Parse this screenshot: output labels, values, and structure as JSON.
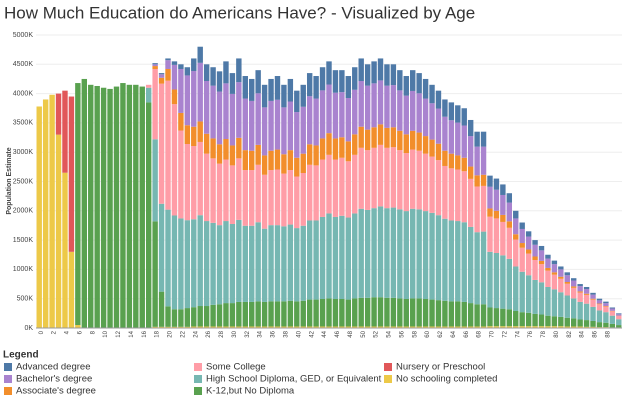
{
  "chart_data": {
    "type": "stacked_bar",
    "title": "How Much Education do Americans Have? - Visualized by Age",
    "y_label": "Population Estimate",
    "legend_title": "Legend",
    "grid": true,
    "ylim": [
      0,
      5000000
    ],
    "yticks": [
      {
        "value": 0,
        "label": "0K"
      },
      {
        "value": 500000,
        "label": "500K"
      },
      {
        "value": 1000000,
        "label": "1000K"
      },
      {
        "value": 1500000,
        "label": "1500K"
      },
      {
        "value": 2000000,
        "label": "2000K"
      },
      {
        "value": 2500000,
        "label": "2500K"
      },
      {
        "value": 3000000,
        "label": "3000K"
      },
      {
        "value": 3500000,
        "label": "3500K"
      },
      {
        "value": 4000000,
        "label": "4000K"
      },
      {
        "value": 4500000,
        "label": "4500K"
      },
      {
        "value": 5000000,
        "label": "5000K"
      }
    ],
    "categories": [
      "0",
      null,
      "2",
      null,
      "4",
      null,
      "6",
      null,
      "8",
      null,
      "10",
      null,
      "12",
      null,
      "14",
      null,
      "16",
      null,
      "18",
      null,
      "20",
      null,
      "22",
      null,
      "24",
      null,
      "26",
      null,
      "28",
      null,
      "30",
      null,
      "32",
      null,
      "34",
      null,
      "36",
      null,
      "38",
      null,
      "40",
      null,
      "42",
      null,
      "44",
      null,
      "46",
      null,
      "48",
      null,
      "50",
      null,
      "52",
      null,
      "54",
      null,
      "56",
      null,
      "58",
      null,
      "60",
      null,
      "62",
      null,
      "64",
      null,
      "66",
      null,
      "68",
      null,
      "70",
      null,
      "72",
      null,
      "74",
      null,
      "76",
      null,
      "78",
      null,
      "80",
      null,
      "82",
      null,
      "84",
      null,
      "86",
      null,
      "88",
      null,
      null
    ],
    "series": [
      {
        "name": "Advanced degree",
        "color": "#4e79a7",
        "values": [
          0,
          0,
          0,
          0,
          0,
          0,
          0,
          0,
          0,
          0,
          0,
          0,
          0,
          0,
          0,
          0,
          0,
          0,
          20000,
          20000,
          30000,
          60000,
          80000,
          140000,
          215000,
          275000,
          285000,
          315000,
          345000,
          375000,
          355000,
          405000,
          385000,
          375000,
          395000,
          385000,
          375000,
          405000,
          385000,
          385000,
          365000,
          375000,
          395000,
          385000,
          395000,
          395000,
          385000,
          375000,
          375000,
          385000,
          385000,
          365000,
          375000,
          375000,
          365000,
          355000,
          345000,
          335000,
          355000,
          345000,
          335000,
          315000,
          305000,
          295000,
          305000,
          295000,
          295000,
          275000,
          255000,
          255000,
          190000,
          190000,
          180000,
          160000,
          130000,
          110000,
          90000,
          80000,
          75000,
          65000,
          60000,
          50000,
          50000,
          40000,
          35000,
          35000,
          30000,
          28000,
          25000,
          17000,
          15000
        ]
      },
      {
        "name": "Bachelor's degree",
        "color": "#a983cf",
        "values": [
          0,
          0,
          0,
          0,
          0,
          0,
          0,
          0,
          0,
          0,
          0,
          0,
          0,
          0,
          0,
          0,
          0,
          0,
          30000,
          60000,
          150000,
          420000,
          750000,
          850000,
          950000,
          1000000,
          900000,
          900000,
          900000,
          950000,
          880000,
          950000,
          880000,
          850000,
          880000,
          820000,
          850000,
          850000,
          800000,
          830000,
          780000,
          800000,
          820000,
          800000,
          820000,
          830000,
          780000,
          770000,
          740000,
          760000,
          780000,
          750000,
          750000,
          750000,
          720000,
          720000,
          690000,
          660000,
          680000,
          670000,
          640000,
          620000,
          600000,
          580000,
          570000,
          560000,
          550000,
          520000,
          490000,
          480000,
          370000,
          360000,
          340000,
          320000,
          270000,
          240000,
          220000,
          200000,
          180000,
          160000,
          140000,
          125000,
          115000,
          100000,
          90000,
          80000,
          70000,
          55000,
          50000,
          40000,
          25000
        ]
      },
      {
        "name": "Associate's degree",
        "color": "#f28e2b",
        "values": [
          0,
          0,
          0,
          0,
          0,
          0,
          0,
          0,
          0,
          0,
          0,
          0,
          0,
          0,
          0,
          0,
          0,
          0,
          50000,
          100000,
          200000,
          250000,
          300000,
          320000,
          330000,
          350000,
          340000,
          340000,
          330000,
          350000,
          340000,
          350000,
          340000,
          330000,
          340000,
          330000,
          330000,
          340000,
          330000,
          340000,
          320000,
          330000,
          350000,
          340000,
          360000,
          370000,
          360000,
          350000,
          340000,
          350000,
          360000,
          350000,
          350000,
          350000,
          340000,
          340000,
          330000,
          320000,
          320000,
          310000,
          300000,
          290000,
          280000,
          260000,
          250000,
          240000,
          230000,
          210000,
          190000,
          190000,
          140000,
          130000,
          120000,
          110000,
          90000,
          80000,
          70000,
          60000,
          55000,
          45000,
          40000,
          35000,
          30000,
          25000,
          20000,
          20000,
          15000,
          12000,
          10000,
          8000,
          5000
        ]
      },
      {
        "name": "Some College",
        "color": "#ff9da7",
        "values": [
          0,
          0,
          0,
          0,
          0,
          0,
          0,
          0,
          0,
          0,
          0,
          0,
          0,
          0,
          0,
          0,
          0,
          50000,
          1200000,
          2050000,
          2200000,
          1900000,
          1500000,
          1300000,
          1250000,
          1250000,
          1150000,
          1100000,
          1050000,
          1050000,
          1000000,
          1050000,
          950000,
          950000,
          980000,
          920000,
          940000,
          950000,
          900000,
          930000,
          880000,
          900000,
          950000,
          940000,
          980000,
          1000000,
          980000,
          990000,
          960000,
          1000000,
          1040000,
          1020000,
          1030000,
          1050000,
          1030000,
          1030000,
          1010000,
          990000,
          1010000,
          1000000,
          980000,
          960000,
          940000,
          900000,
          890000,
          880000,
          870000,
          820000,
          780000,
          780000,
          600000,
          590000,
          570000,
          530000,
          460000,
          410000,
          370000,
          340000,
          310000,
          280000,
          250000,
          230000,
          200000,
          180000,
          160000,
          150000,
          125000,
          105000,
          95000,
          75000,
          55000
        ]
      },
      {
        "name": "High School Diploma, GED, or Equivalent",
        "color": "#76b7b2",
        "values": [
          0,
          0,
          0,
          0,
          0,
          0,
          0,
          0,
          0,
          0,
          0,
          0,
          0,
          0,
          0,
          0,
          0,
          250000,
          1400000,
          1500000,
          1650000,
          1600000,
          1550000,
          1500000,
          1500000,
          1550000,
          1450000,
          1400000,
          1350000,
          1400000,
          1350000,
          1400000,
          1300000,
          1300000,
          1350000,
          1250000,
          1300000,
          1300000,
          1280000,
          1300000,
          1250000,
          1280000,
          1350000,
          1350000,
          1400000,
          1450000,
          1400000,
          1420000,
          1400000,
          1450000,
          1520000,
          1500000,
          1520000,
          1550000,
          1530000,
          1540000,
          1520000,
          1500000,
          1530000,
          1520000,
          1500000,
          1480000,
          1450000,
          1400000,
          1380000,
          1370000,
          1360000,
          1300000,
          1230000,
          1240000,
          950000,
          940000,
          910000,
          860000,
          760000,
          690000,
          640000,
          580000,
          550000,
          490000,
          460000,
          420000,
          380000,
          340000,
          300000,
          280000,
          240000,
          200000,
          180000,
          140000,
          100000
        ]
      },
      {
        "name": "K-12,but No Diploma",
        "color": "#59a14f",
        "values": [
          0,
          0,
          0,
          0,
          0,
          0,
          4130000,
          4250000,
          4150000,
          4130000,
          4100000,
          4080000,
          4120000,
          4180000,
          4150000,
          4150000,
          4120000,
          3850000,
          1800000,
          600000,
          350000,
          300000,
          300000,
          320000,
          330000,
          350000,
          350000,
          370000,
          380000,
          400000,
          400000,
          420000,
          420000,
          420000,
          430000,
          420000,
          430000,
          430000,
          430000,
          440000,
          430000,
          440000,
          460000,
          460000,
          470000,
          480000,
          470000,
          470000,
          460000,
          480000,
          490000,
          490000,
          500000,
          500000,
          490000,
          490000,
          480000,
          470000,
          480000,
          480000,
          470000,
          460000,
          450000,
          440000,
          430000,
          430000,
          420000,
          400000,
          380000,
          380000,
          320000,
          310000,
          300000,
          290000,
          260000,
          240000,
          230000,
          210000,
          200000,
          180000,
          170000,
          160000,
          150000,
          140000,
          120000,
          115000,
          100000,
          85000,
          75000,
          60000,
          40000
        ]
      },
      {
        "name": "Nursery or Preschool",
        "color": "#e15759",
        "values": [
          0,
          0,
          0,
          700000,
          1400000,
          2650000,
          0,
          0,
          0,
          0,
          0,
          0,
          0,
          0,
          0,
          0,
          0,
          0,
          0,
          0,
          0,
          0,
          0,
          0,
          0,
          0,
          0,
          0,
          0,
          0,
          0,
          0,
          0,
          0,
          0,
          0,
          0,
          0,
          0,
          0,
          0,
          0,
          0,
          0,
          0,
          0,
          0,
          0,
          0,
          0,
          0,
          0,
          0,
          0,
          0,
          0,
          0,
          0,
          0,
          0,
          0,
          0,
          0,
          0,
          0,
          0,
          0,
          0,
          0,
          0,
          0,
          0,
          0,
          0,
          0,
          0,
          0,
          0,
          0,
          0,
          0,
          0,
          0,
          0,
          0,
          0,
          0,
          0,
          0,
          0,
          0
        ]
      },
      {
        "name": "No schooling completed",
        "color": "#edc948",
        "values": [
          3780000,
          3900000,
          3980000,
          3300000,
          2650000,
          1300000,
          50000,
          0,
          0,
          0,
          0,
          0,
          0,
          0,
          0,
          0,
          0,
          0,
          20000,
          20000,
          20000,
          20000,
          20000,
          20000,
          25000,
          25000,
          25000,
          25000,
          25000,
          25000,
          25000,
          25000,
          25000,
          25000,
          25000,
          25000,
          25000,
          25000,
          25000,
          25000,
          25000,
          25000,
          25000,
          25000,
          25000,
          25000,
          25000,
          25000,
          25000,
          25000,
          25000,
          25000,
          25000,
          25000,
          25000,
          25000,
          25000,
          25000,
          25000,
          25000,
          25000,
          25000,
          25000,
          25000,
          25000,
          25000,
          25000,
          25000,
          25000,
          25000,
          30000,
          30000,
          30000,
          30000,
          30000,
          30000,
          30000,
          30000,
          30000,
          30000,
          30000,
          30000,
          25000,
          25000,
          25000,
          20000,
          20000,
          15000,
          15000,
          10000,
          10000
        ]
      }
    ]
  }
}
